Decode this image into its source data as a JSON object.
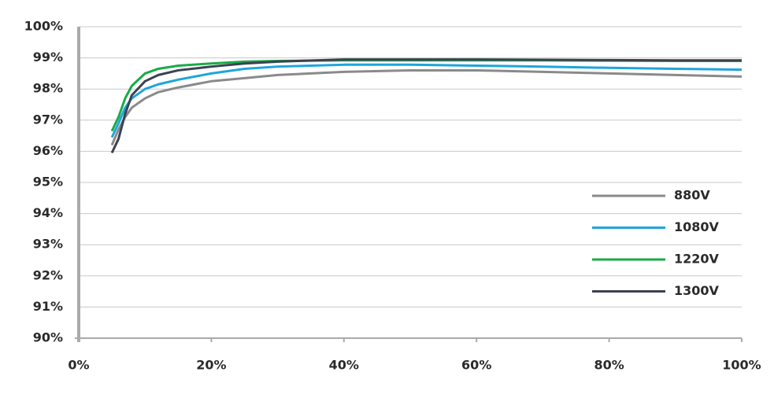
{
  "chart_data": {
    "type": "line",
    "x": [
      5,
      6,
      7,
      8,
      10,
      12,
      15,
      20,
      25,
      30,
      40,
      50,
      60,
      70,
      80,
      90,
      100
    ],
    "series": [
      {
        "name": "880V",
        "color": "#8a8a8a",
        "values": [
          96.2,
          96.7,
          97.1,
          97.4,
          97.7,
          97.9,
          98.05,
          98.25,
          98.35,
          98.45,
          98.55,
          98.6,
          98.6,
          98.55,
          98.5,
          98.45,
          98.4
        ]
      },
      {
        "name": "1080V",
        "color": "#1ea5dc",
        "values": [
          96.45,
          96.9,
          97.4,
          97.7,
          98.0,
          98.15,
          98.3,
          98.5,
          98.65,
          98.72,
          98.78,
          98.78,
          98.75,
          98.72,
          98.68,
          98.65,
          98.62
        ]
      },
      {
        "name": "1220V",
        "color": "#1aaa4a",
        "values": [
          96.65,
          97.1,
          97.7,
          98.1,
          98.5,
          98.65,
          98.75,
          98.82,
          98.88,
          98.9,
          98.92,
          98.92,
          98.92,
          98.92,
          98.91,
          98.9,
          98.9
        ]
      },
      {
        "name": "1300V",
        "color": "#3c4250",
        "values": [
          95.95,
          96.4,
          97.2,
          97.8,
          98.25,
          98.45,
          98.6,
          98.72,
          98.82,
          98.88,
          98.95,
          98.95,
          98.95,
          98.94,
          98.93,
          98.92,
          98.92
        ]
      }
    ],
    "xlim": [
      0,
      100
    ],
    "xticks": [
      {
        "value": 0,
        "label": "0%"
      },
      {
        "value": 20,
        "label": "20%"
      },
      {
        "value": 40,
        "label": "40%"
      },
      {
        "value": 60,
        "label": "60%"
      },
      {
        "value": 80,
        "label": "80%"
      },
      {
        "value": 100,
        "label": "100%"
      }
    ],
    "ylim": [
      90,
      100
    ],
    "yticks": [
      {
        "value": 90,
        "label": "90%"
      },
      {
        "value": 91,
        "label": "91%"
      },
      {
        "value": 92,
        "label": "92%"
      },
      {
        "value": 93,
        "label": "93%"
      },
      {
        "value": 94,
        "label": "94%"
      },
      {
        "value": 95,
        "label": "95%"
      },
      {
        "value": 96,
        "label": "96%"
      },
      {
        "value": 97,
        "label": "97%"
      },
      {
        "value": 98,
        "label": "98%"
      },
      {
        "value": 99,
        "label": "99%"
      },
      {
        "value": 100,
        "label": "100%"
      }
    ],
    "grid": true
  }
}
